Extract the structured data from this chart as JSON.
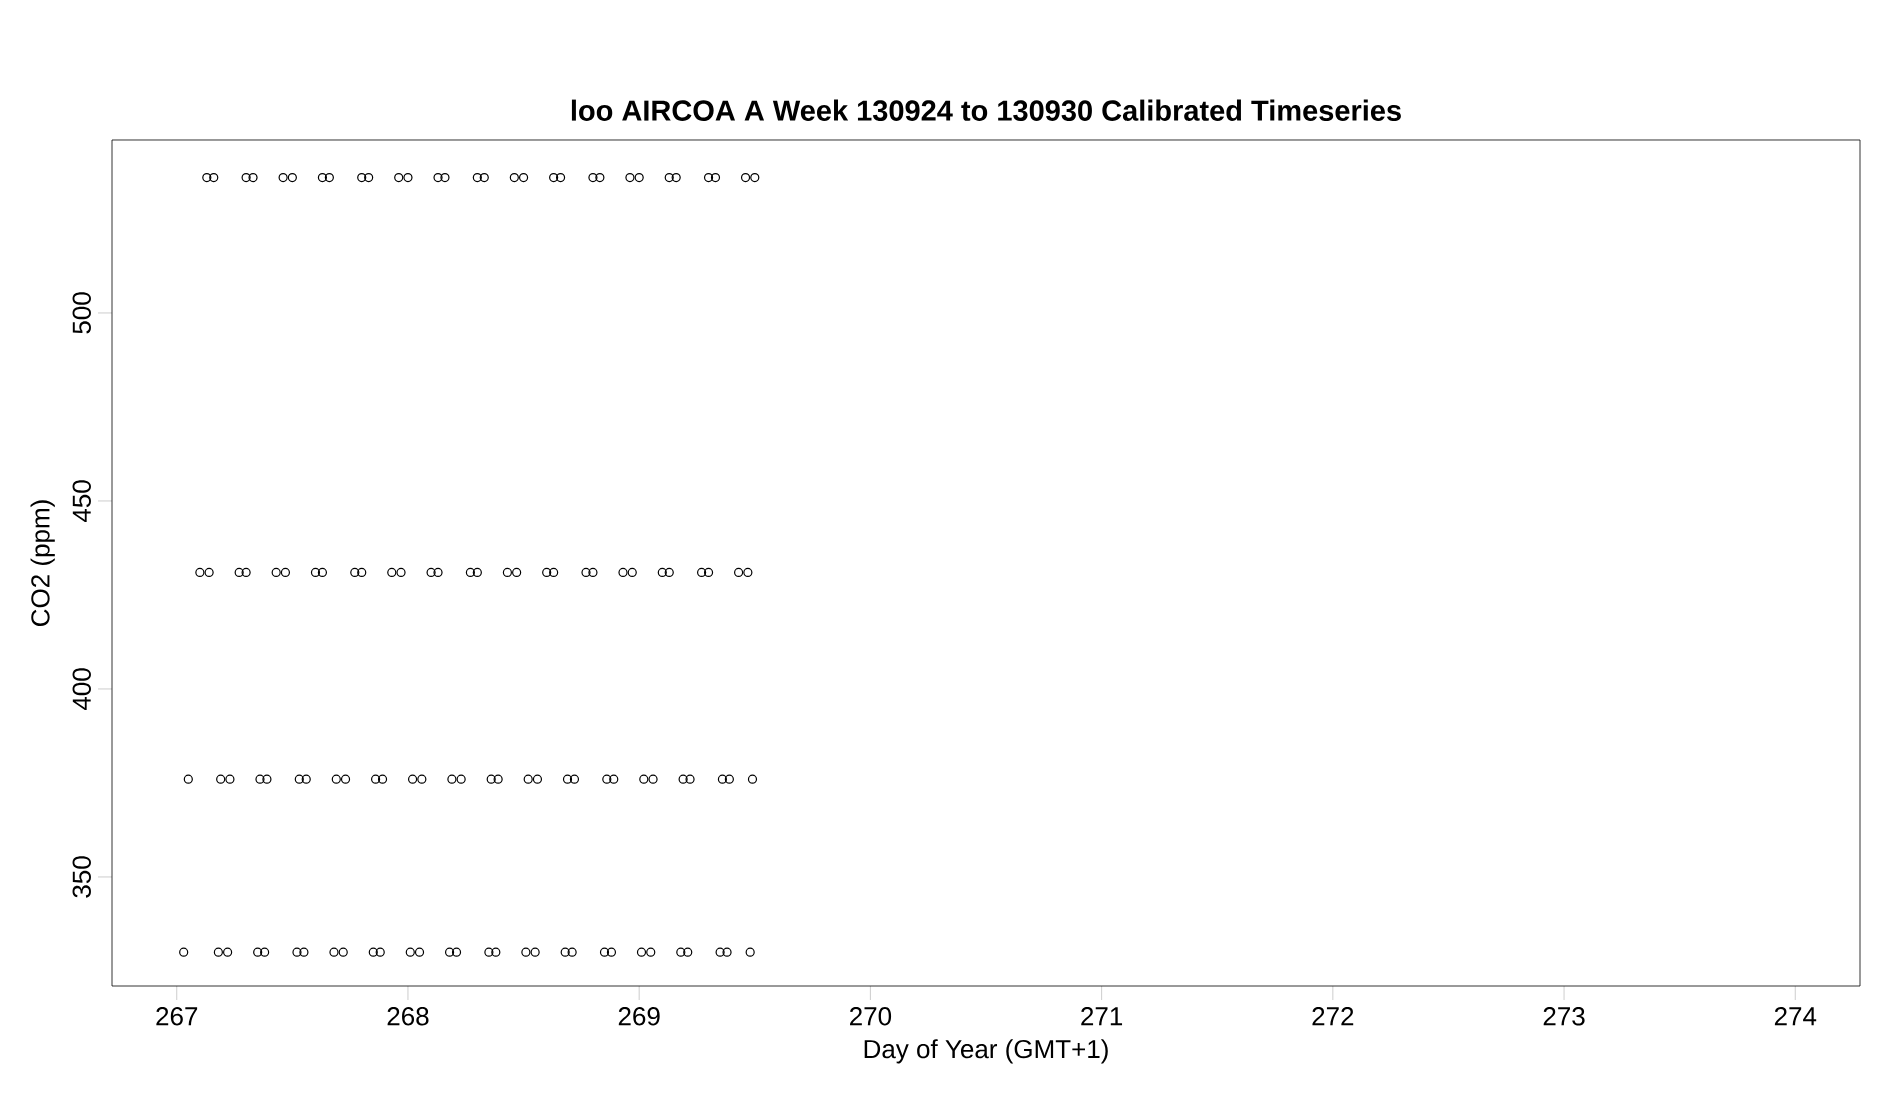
{
  "chart_data": {
    "type": "scatter",
    "title": "loo AIRCOA A  Week 130924 to 130930  Calibrated Timeseries",
    "xlabel": "Day of Year (GMT+1)",
    "ylabel": "CO2 (ppm)",
    "marker": "circle",
    "grid": false,
    "xlim": [
      266.72,
      274.28
    ],
    "ylim": [
      321,
      546
    ],
    "xticks": [
      267,
      268,
      269,
      270,
      271,
      272,
      273,
      274
    ],
    "yticks": [
      350,
      400,
      450,
      500
    ],
    "series": [
      {
        "color": "#000000",
        "x": [
          267.13,
          267.16,
          267.3,
          267.33,
          267.46,
          267.5,
          267.63,
          267.66,
          267.8,
          267.83,
          267.96,
          268.0,
          268.13,
          268.16,
          268.3,
          268.33,
          268.46,
          268.5,
          268.63,
          268.66,
          268.8,
          268.83,
          268.96,
          269.0,
          269.13,
          269.16,
          269.3,
          269.33,
          269.46,
          269.5
        ],
        "values": [
          536,
          536,
          536,
          536,
          536,
          536,
          536,
          536,
          536,
          536,
          536,
          536,
          536,
          536,
          536,
          536,
          536,
          536,
          536,
          536,
          536,
          536,
          536,
          536,
          536,
          536,
          536,
          536,
          536,
          536
        ]
      },
      {
        "color": "#000000",
        "x": [
          267.1,
          267.14,
          267.27,
          267.3,
          267.43,
          267.47,
          267.6,
          267.63,
          267.77,
          267.8,
          267.93,
          267.97,
          268.1,
          268.13,
          268.27,
          268.3,
          268.43,
          268.47,
          268.6,
          268.63,
          268.77,
          268.8,
          268.93,
          268.97,
          269.1,
          269.13,
          269.27,
          269.3,
          269.43,
          269.47
        ],
        "values": [
          431,
          431,
          431,
          431,
          431,
          431,
          431,
          431,
          431,
          431,
          431,
          431,
          431,
          431,
          431,
          431,
          431,
          431,
          431,
          431,
          431,
          431,
          431,
          431,
          431,
          431,
          431,
          431,
          431,
          431
        ]
      },
      {
        "color": "#000000",
        "x": [
          267.05,
          267.19,
          267.23,
          267.36,
          267.39,
          267.53,
          267.56,
          267.69,
          267.73,
          267.86,
          267.89,
          268.02,
          268.06,
          268.19,
          268.23,
          268.36,
          268.39,
          268.52,
          268.56,
          268.69,
          268.72,
          268.86,
          268.89,
          269.02,
          269.06,
          269.19,
          269.22,
          269.36,
          269.39,
          269.49
        ],
        "values": [
          376,
          376,
          376,
          376,
          376,
          376,
          376,
          376,
          376,
          376,
          376,
          376,
          376,
          376,
          376,
          376,
          376,
          376,
          376,
          376,
          376,
          376,
          376,
          376,
          376,
          376,
          376,
          376,
          376,
          376
        ]
      },
      {
        "color": "#000000",
        "x": [
          267.03,
          267.18,
          267.22,
          267.35,
          267.38,
          267.52,
          267.55,
          267.68,
          267.72,
          267.85,
          267.88,
          268.01,
          268.05,
          268.18,
          268.21,
          268.35,
          268.38,
          268.51,
          268.55,
          268.68,
          268.71,
          268.85,
          268.88,
          269.01,
          269.05,
          269.18,
          269.21,
          269.35,
          269.38,
          269.48
        ],
        "values": [
          330,
          330,
          330,
          330,
          330,
          330,
          330,
          330,
          330,
          330,
          330,
          330,
          330,
          330,
          330,
          330,
          330,
          330,
          330,
          330,
          330,
          330,
          330,
          330,
          330,
          330,
          330,
          330,
          330,
          330
        ]
      }
    ]
  }
}
